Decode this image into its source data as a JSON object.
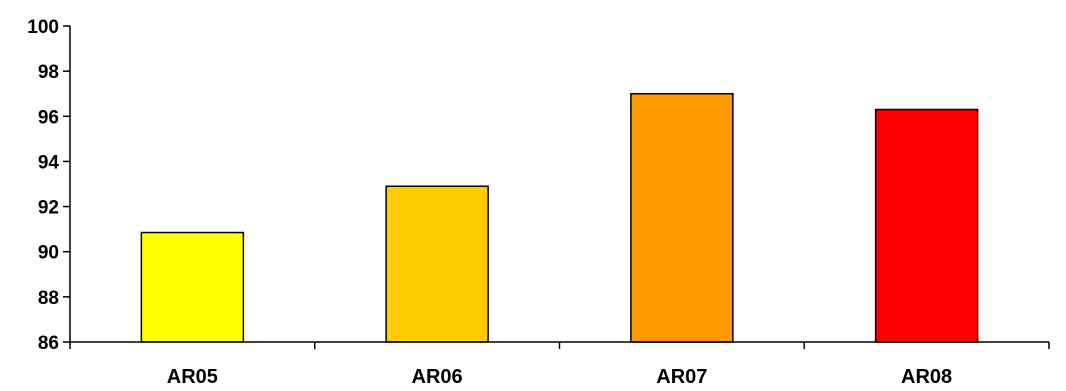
{
  "chart_data": {
    "type": "bar",
    "categories": [
      "AR05",
      "AR06",
      "AR07",
      "AR08"
    ],
    "values": [
      90.85,
      92.9,
      97.0,
      96.3
    ],
    "bar_colors": [
      "#FFFF00",
      "#FFCC00",
      "#FF9900",
      "#FF0000"
    ],
    "ylim": [
      86,
      100
    ],
    "yticks": [
      86,
      88,
      90,
      92,
      94,
      96,
      98,
      100
    ],
    "grid": false,
    "legend": "none"
  }
}
